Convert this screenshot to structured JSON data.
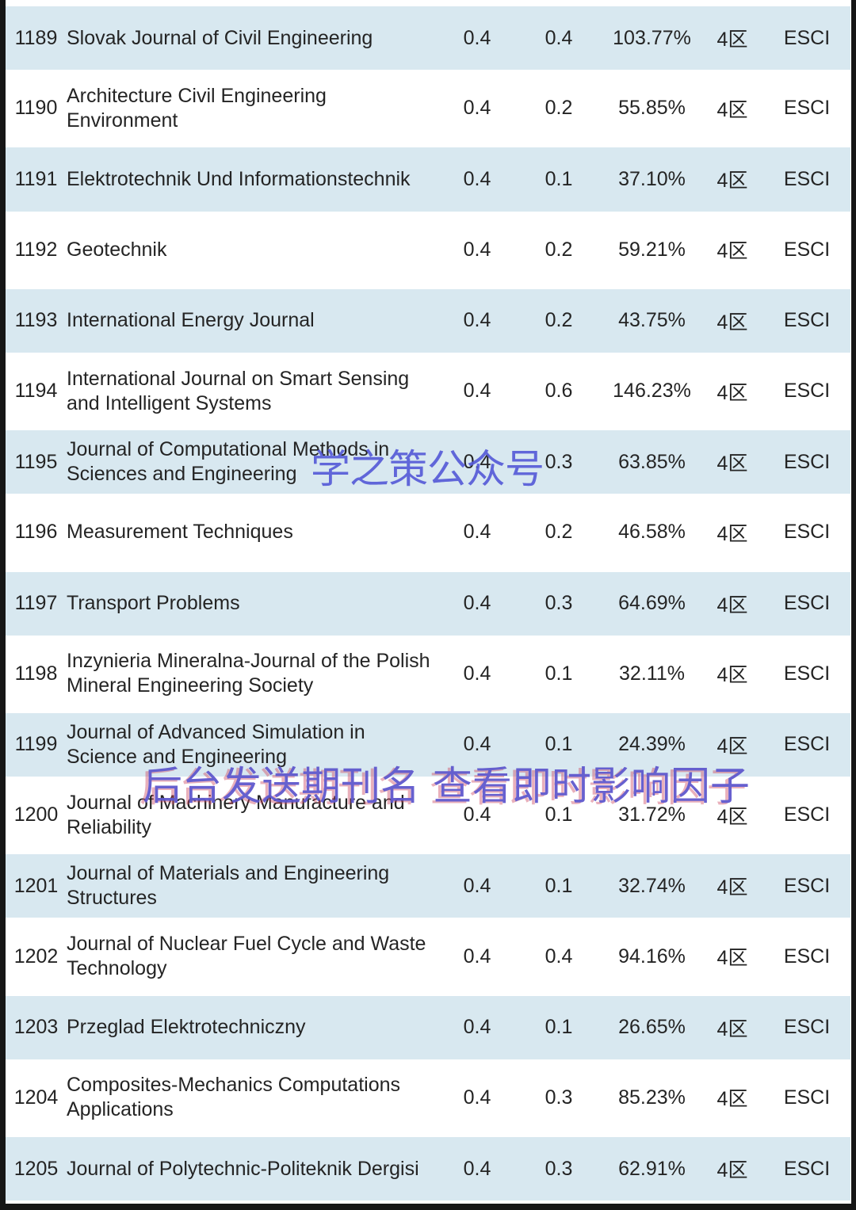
{
  "watermarks": {
    "brand": "学之策公众号",
    "banner": "后台发送期刊名 查看即时影响因子",
    "brand_color": "#565bd8",
    "banner_color": "#5f58cd",
    "banner_fringe_color": "#cd4660"
  },
  "table": {
    "row_colors": {
      "striped": "#d8e8f0",
      "plain": "#ffffff"
    },
    "rows": [
      {
        "no": "1189",
        "name": "Slovak Journal of Civil Engineering",
        "if": "0.4",
        "ci": "0.4",
        "pct": "103.77%",
        "zone": "4区",
        "core": "ESCI"
      },
      {
        "no": "1190",
        "name": "Architecture Civil Engineering Environment",
        "if": "0.4",
        "ci": "0.2",
        "pct": "55.85%",
        "zone": "4区",
        "core": "ESCI"
      },
      {
        "no": "1191",
        "name": "Elektrotechnik Und Informationstechnik",
        "if": "0.4",
        "ci": "0.1",
        "pct": "37.10%",
        "zone": "4区",
        "core": "ESCI"
      },
      {
        "no": "1192",
        "name": "Geotechnik",
        "if": "0.4",
        "ci": "0.2",
        "pct": "59.21%",
        "zone": "4区",
        "core": "ESCI"
      },
      {
        "no": "1193",
        "name": "International Energy Journal",
        "if": "0.4",
        "ci": "0.2",
        "pct": "43.75%",
        "zone": "4区",
        "core": "ESCI"
      },
      {
        "no": "1194",
        "name": "International Journal on Smart Sensing and Intelligent Systems",
        "if": "0.4",
        "ci": "0.6",
        "pct": "146.23%",
        "zone": "4区",
        "core": "ESCI"
      },
      {
        "no": "1195",
        "name": "Journal of Computational Methods in Sciences and Engineering",
        "if": "0.4",
        "ci": "0.3",
        "pct": "63.85%",
        "zone": "4区",
        "core": "ESCI"
      },
      {
        "no": "1196",
        "name": "Measurement Techniques",
        "if": "0.4",
        "ci": "0.2",
        "pct": "46.58%",
        "zone": "4区",
        "core": "ESCI"
      },
      {
        "no": "1197",
        "name": "Transport Problems",
        "if": "0.4",
        "ci": "0.3",
        "pct": "64.69%",
        "zone": "4区",
        "core": "ESCI"
      },
      {
        "no": "1198",
        "name": "Inzynieria Mineralna-Journal of the Polish Mineral Engineering Society",
        "if": "0.4",
        "ci": "0.1",
        "pct": "32.11%",
        "zone": "4区",
        "core": "ESCI"
      },
      {
        "no": "1199",
        "name": "Journal of Advanced Simulation in Science and Engineering",
        "if": "0.4",
        "ci": "0.1",
        "pct": "24.39%",
        "zone": "4区",
        "core": "ESCI"
      },
      {
        "no": "1200",
        "name": "Journal of Machinery Manufacture and Reliability",
        "if": "0.4",
        "ci": "0.1",
        "pct": "31.72%",
        "zone": "4区",
        "core": "ESCI"
      },
      {
        "no": "1201",
        "name": "Journal of Materials and Engineering Structures",
        "if": "0.4",
        "ci": "0.1",
        "pct": "32.74%",
        "zone": "4区",
        "core": "ESCI"
      },
      {
        "no": "1202",
        "name": "Journal of Nuclear Fuel Cycle and Waste Technology",
        "if": "0.4",
        "ci": "0.4",
        "pct": "94.16%",
        "zone": "4区",
        "core": "ESCI"
      },
      {
        "no": "1203",
        "name": "Przeglad Elektrotechniczny",
        "if": "0.4",
        "ci": "0.1",
        "pct": "26.65%",
        "zone": "4区",
        "core": "ESCI"
      },
      {
        "no": "1204",
        "name": "Composites-Mechanics Computations Applications",
        "if": "0.4",
        "ci": "0.3",
        "pct": "85.23%",
        "zone": "4区",
        "core": "ESCI"
      },
      {
        "no": "1205",
        "name": "Journal of Polytechnic-Politeknik Dergisi",
        "if": "0.4",
        "ci": "0.3",
        "pct": "62.91%",
        "zone": "4区",
        "core": "ESCI"
      }
    ]
  }
}
